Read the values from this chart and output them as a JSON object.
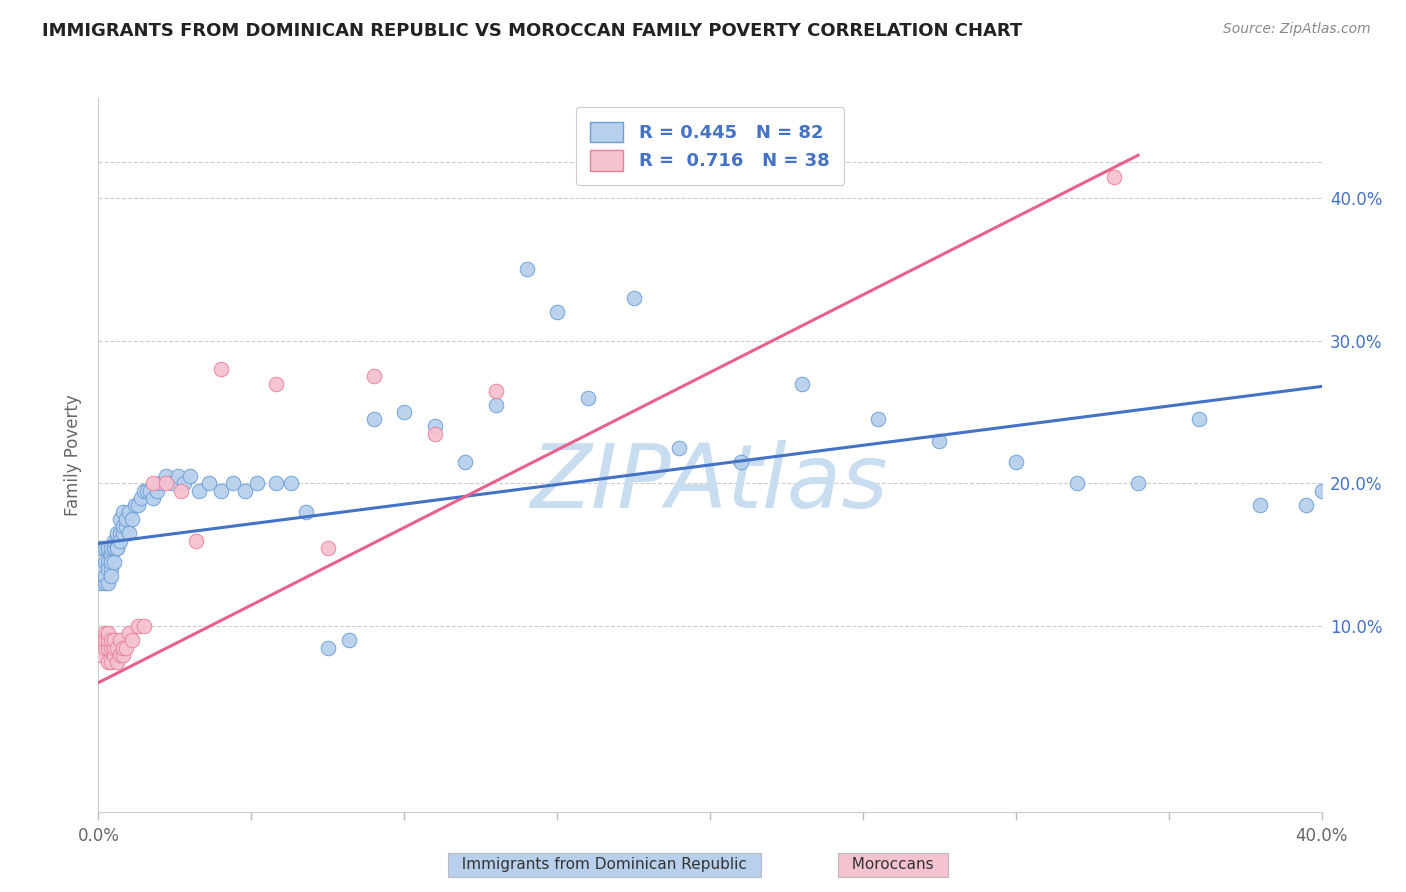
{
  "title": "IMMIGRANTS FROM DOMINICAN REPUBLIC VS MOROCCAN FAMILY POVERTY CORRELATION CHART",
  "source": "Source: ZipAtlas.com",
  "ylabel": "Family Poverty",
  "xlim": [
    0.0,
    0.4
  ],
  "ylim": [
    -0.03,
    0.47
  ],
  "xticks_labeled": [
    0.0,
    0.4
  ],
  "xticks_minor": [
    0.05,
    0.1,
    0.15,
    0.2,
    0.25,
    0.3,
    0.35
  ],
  "yticks_right": [
    0.1,
    0.2,
    0.3,
    0.4
  ],
  "ytick_top": 0.425,
  "legend_line1": "R = 0.445   N = 82",
  "legend_line2": "R =  0.716   N = 38",
  "color_blue_fill": "#b8d0eb",
  "color_blue_edge": "#6a9fd8",
  "color_pink_fill": "#f5c2d0",
  "color_pink_edge": "#e8809a",
  "color_line_blue": "#4472c4",
  "color_line_pink": "#e8608c",
  "color_title": "#222222",
  "color_source": "#888888",
  "color_legend_text": "#4472c4",
  "watermark": "ZIPAtlas",
  "watermark_color": "#c8ddf0",
  "blue_line_x": [
    0.0,
    0.4
  ],
  "blue_line_y": [
    0.158,
    0.268
  ],
  "pink_line_x": [
    -0.005,
    0.34
  ],
  "pink_line_y": [
    0.055,
    0.43
  ],
  "blue_x": [
    0.001,
    0.001,
    0.001,
    0.002,
    0.002,
    0.002,
    0.002,
    0.003,
    0.003,
    0.003,
    0.003,
    0.003,
    0.004,
    0.004,
    0.004,
    0.004,
    0.004,
    0.005,
    0.005,
    0.005,
    0.005,
    0.006,
    0.006,
    0.006,
    0.006,
    0.007,
    0.007,
    0.007,
    0.008,
    0.008,
    0.008,
    0.009,
    0.009,
    0.01,
    0.01,
    0.011,
    0.012,
    0.013,
    0.014,
    0.015,
    0.016,
    0.017,
    0.018,
    0.019,
    0.02,
    0.022,
    0.024,
    0.026,
    0.028,
    0.03,
    0.033,
    0.036,
    0.04,
    0.044,
    0.048,
    0.052,
    0.058,
    0.063,
    0.068,
    0.075,
    0.082,
    0.09,
    0.1,
    0.11,
    0.12,
    0.13,
    0.14,
    0.15,
    0.16,
    0.175,
    0.19,
    0.21,
    0.23,
    0.255,
    0.275,
    0.3,
    0.32,
    0.34,
    0.36,
    0.38,
    0.395,
    0.4
  ],
  "blue_y": [
    0.14,
    0.155,
    0.13,
    0.13,
    0.145,
    0.155,
    0.135,
    0.145,
    0.155,
    0.14,
    0.13,
    0.155,
    0.14,
    0.15,
    0.155,
    0.145,
    0.135,
    0.155,
    0.145,
    0.155,
    0.16,
    0.16,
    0.155,
    0.155,
    0.165,
    0.165,
    0.16,
    0.175,
    0.165,
    0.17,
    0.18,
    0.17,
    0.175,
    0.165,
    0.18,
    0.175,
    0.185,
    0.185,
    0.19,
    0.195,
    0.195,
    0.195,
    0.19,
    0.195,
    0.2,
    0.205,
    0.2,
    0.205,
    0.2,
    0.205,
    0.195,
    0.2,
    0.195,
    0.2,
    0.195,
    0.2,
    0.2,
    0.2,
    0.18,
    0.085,
    0.09,
    0.245,
    0.25,
    0.24,
    0.215,
    0.255,
    0.35,
    0.32,
    0.26,
    0.33,
    0.225,
    0.215,
    0.27,
    0.245,
    0.23,
    0.215,
    0.2,
    0.2,
    0.245,
    0.185,
    0.185,
    0.195
  ],
  "pink_x": [
    0.001,
    0.001,
    0.001,
    0.002,
    0.002,
    0.002,
    0.003,
    0.003,
    0.003,
    0.003,
    0.004,
    0.004,
    0.004,
    0.005,
    0.005,
    0.005,
    0.006,
    0.006,
    0.007,
    0.007,
    0.008,
    0.008,
    0.009,
    0.01,
    0.011,
    0.013,
    0.015,
    0.018,
    0.022,
    0.027,
    0.032,
    0.04,
    0.058,
    0.075,
    0.09,
    0.11,
    0.13,
    0.332
  ],
  "pink_y": [
    0.085,
    0.09,
    0.08,
    0.095,
    0.085,
    0.09,
    0.075,
    0.085,
    0.09,
    0.095,
    0.075,
    0.085,
    0.09,
    0.08,
    0.085,
    0.09,
    0.075,
    0.085,
    0.08,
    0.09,
    0.08,
    0.085,
    0.085,
    0.095,
    0.09,
    0.1,
    0.1,
    0.2,
    0.2,
    0.195,
    0.16,
    0.28,
    0.27,
    0.155,
    0.275,
    0.235,
    0.265,
    0.415
  ]
}
